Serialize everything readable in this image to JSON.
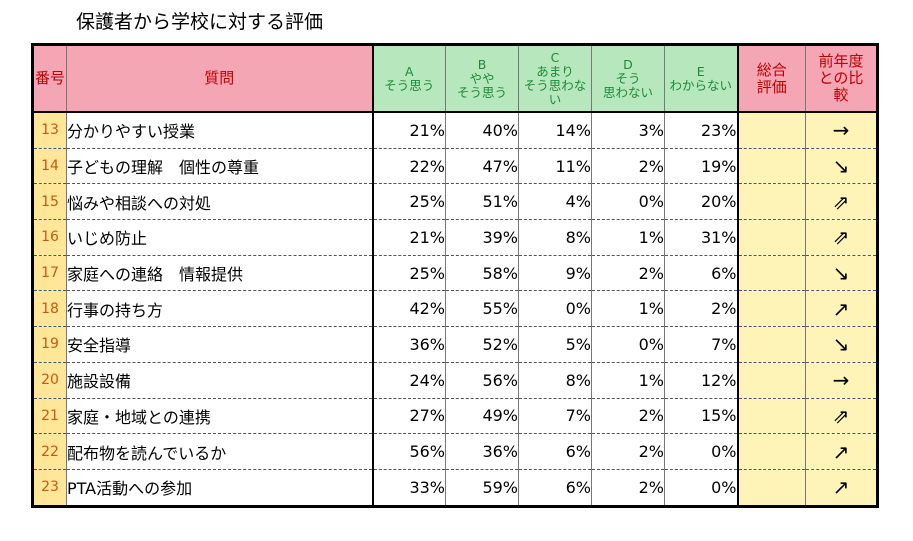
{
  "title": "保護者から学校に対する評価",
  "header": {
    "num": "番号",
    "question": "質問",
    "options": [
      {
        "letter": "A",
        "text": "そう思う"
      },
      {
        "letter": "B",
        "text": "やや\nそう思う"
      },
      {
        "letter": "C",
        "text": "あまり\nそう思わな\nい"
      },
      {
        "letter": "D",
        "text": "そう\n思わない"
      },
      {
        "letter": "E",
        "text": "わからない"
      }
    ],
    "overall": "総合\n評価",
    "compare": "前年度\nとの比\n較"
  },
  "rows": [
    {
      "num": "13",
      "q": "分かりやすい授業",
      "a": "21%",
      "b": "40%",
      "c": "14%",
      "d": "3%",
      "e": "23%",
      "trend": "→"
    },
    {
      "num": "14",
      "q": "子どもの理解　個性の尊重",
      "a": "22%",
      "b": "47%",
      "c": "11%",
      "d": "2%",
      "e": "19%",
      "trend": "↘"
    },
    {
      "num": "15",
      "q": "悩みや相談への対処",
      "a": "25%",
      "b": "51%",
      "c": "4%",
      "d": "0%",
      "e": "20%",
      "trend": "⇗"
    },
    {
      "num": "16",
      "q": "いじめ防止",
      "a": "21%",
      "b": "39%",
      "c": "8%",
      "d": "1%",
      "e": "31%",
      "trend": "⇗"
    },
    {
      "num": "17",
      "q": "家庭への連絡　情報提供",
      "a": "25%",
      "b": "58%",
      "c": "9%",
      "d": "2%",
      "e": "6%",
      "trend": "↘"
    },
    {
      "num": "18",
      "q": "行事の持ち方",
      "a": "42%",
      "b": "55%",
      "c": "0%",
      "d": "1%",
      "e": "2%",
      "trend": "↗"
    },
    {
      "num": "19",
      "q": "安全指導",
      "a": "36%",
      "b": "52%",
      "c": "5%",
      "d": "0%",
      "e": "7%",
      "trend": "↘"
    },
    {
      "num": "20",
      "q": "施設設備",
      "a": "24%",
      "b": "56%",
      "c": "8%",
      "d": "1%",
      "e": "12%",
      "trend": "→"
    },
    {
      "num": "21",
      "q": "家庭・地域との連携",
      "a": "27%",
      "b": "49%",
      "c": "7%",
      "d": "2%",
      "e": "15%",
      "trend": "⇗"
    },
    {
      "num": "22",
      "q": "配布物を読んでいるか",
      "a": "56%",
      "b": "36%",
      "c": "6%",
      "d": "2%",
      "e": "0%",
      "trend": "↗"
    },
    {
      "num": "23",
      "q": "PTA活動への参加",
      "a": "33%",
      "b": "59%",
      "c": "6%",
      "d": "2%",
      "e": "0%",
      "trend": "↗"
    }
  ],
  "colors": {
    "header_pink": "#f4a6b4",
    "header_green": "#b6e7bd",
    "number_cell": "#ffe699",
    "eval_cell": "#fff4b8"
  }
}
